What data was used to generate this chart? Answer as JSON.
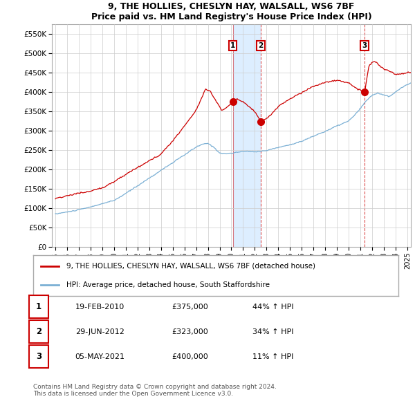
{
  "title1": "9, THE HOLLIES, CHESLYN HAY, WALSALL, WS6 7BF",
  "title2": "Price paid vs. HM Land Registry's House Price Index (HPI)",
  "ylabel_vals": [
    0,
    50000,
    100000,
    150000,
    200000,
    250000,
    300000,
    350000,
    400000,
    450000,
    500000,
    550000
  ],
  "ylabel_labels": [
    "£0",
    "£50K",
    "£100K",
    "£150K",
    "£200K",
    "£250K",
    "£300K",
    "£350K",
    "£400K",
    "£450K",
    "£500K",
    "£550K"
  ],
  "xlim_start": 1994.7,
  "xlim_end": 2025.3,
  "ylim_min": 0,
  "ylim_max": 575000,
  "sale_dates": [
    2010.13,
    2012.5,
    2021.35
  ],
  "sale_prices": [
    375000,
    323000,
    400000
  ],
  "sale_labels": [
    "1",
    "2",
    "3"
  ],
  "legend_red": "9, THE HOLLIES, CHESLYN HAY, WALSALL, WS6 7BF (detached house)",
  "legend_blue": "HPI: Average price, detached house, South Staffordshire",
  "table_data": [
    [
      "1",
      "19-FEB-2010",
      "£375,000",
      "44% ↑ HPI"
    ],
    [
      "2",
      "29-JUN-2012",
      "£323,000",
      "34% ↑ HPI"
    ],
    [
      "3",
      "05-MAY-2021",
      "£400,000",
      "11% ↑ HPI"
    ]
  ],
  "footer": "Contains HM Land Registry data © Crown copyright and database right 2024.\nThis data is licensed under the Open Government Licence v3.0.",
  "red_color": "#cc0000",
  "blue_color": "#7aafd4",
  "shade_color": "#ddeeff",
  "vline_color": "#cc0000",
  "bg_color": "#ffffff",
  "grid_color": "#cccccc"
}
